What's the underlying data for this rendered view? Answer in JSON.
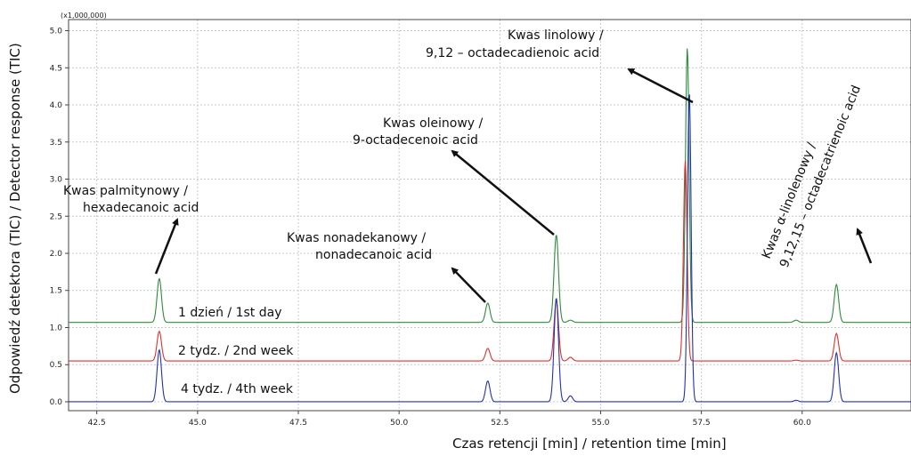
{
  "chart_data": {
    "type": "line",
    "title": "",
    "xlabel": "Czas retencji [min] / retention time [min]",
    "ylabel": "Odpowiedź detektora (TIC) / Detector response (TIC)",
    "y_multiplier": "(x1,000,000)",
    "xlim": [
      41.8,
      62.7
    ],
    "ylim": [
      -0.12,
      5.15
    ],
    "x_ticks": [
      "42.5",
      "45.0",
      "47.5",
      "50.0",
      "52.5",
      "55.0",
      "57.5",
      "60.0"
    ],
    "y_ticks": [
      "0.0",
      "0.5",
      "1.0",
      "1.5",
      "2.0",
      "2.5",
      "3.0",
      "3.5",
      "4.0",
      "4.5",
      "5.0"
    ],
    "grid": true,
    "series": [
      {
        "name": "1 dzień / 1st day",
        "color": "#2e8b3c",
        "baseline": 1.07,
        "peaks": [
          [
            44.05,
            1.66
          ],
          [
            52.2,
            1.33
          ],
          [
            53.9,
            2.25
          ],
          [
            54.25,
            1.1
          ],
          [
            57.15,
            4.77
          ],
          [
            59.85,
            1.1
          ],
          [
            60.85,
            1.58
          ]
        ]
      },
      {
        "name": "2 tydz. / 2nd week",
        "color": "#e03030",
        "baseline": 0.55,
        "peaks": [
          [
            44.05,
            0.95
          ],
          [
            52.2,
            0.72
          ],
          [
            53.9,
            1.37
          ],
          [
            54.25,
            0.6
          ],
          [
            57.1,
            3.25
          ],
          [
            59.85,
            0.56
          ],
          [
            60.85,
            0.92
          ]
        ]
      },
      {
        "name": "4 tydz. / 4th week",
        "color": "#2233aa",
        "baseline": 0.0,
        "peaks": [
          [
            44.05,
            0.7
          ],
          [
            52.2,
            0.28
          ],
          [
            53.9,
            1.4
          ],
          [
            54.25,
            0.08
          ],
          [
            57.2,
            4.18
          ],
          [
            59.85,
            0.02
          ],
          [
            60.85,
            0.66
          ]
        ]
      }
    ],
    "annotations": [
      {
        "lines": [
          "Kwas palmitynowy /",
          "hexadecanoic acid"
        ],
        "peak_x": 44.05
      },
      {
        "lines": [
          "Kwas nonadekanowy /",
          "nonadecanoic acid"
        ],
        "peak_x": 52.2
      },
      {
        "lines": [
          "Kwas oleinowy /",
          "9-octadecenoic acid"
        ],
        "peak_x": 53.9
      },
      {
        "lines": [
          "Kwas linolowy /",
          "9,12 – octadecadienoic acid"
        ],
        "peak_x": 57.15
      },
      {
        "lines": [
          "Kwas α-linolenowy /",
          "9,12,15 – octadecatrienoic acid"
        ],
        "peak_x": 60.85
      }
    ]
  }
}
